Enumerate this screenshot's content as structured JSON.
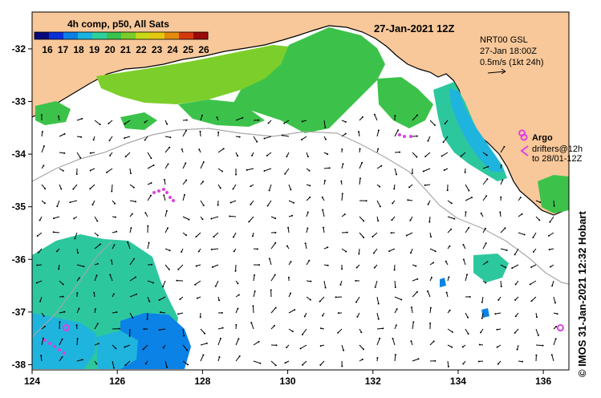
{
  "colorbar": {
    "title": "4h comp, p50, All Sats",
    "ticks": [
      "16",
      "17",
      "18",
      "19",
      "20",
      "21",
      "22",
      "23",
      "24",
      "25",
      "26"
    ],
    "colors": [
      "#08087a",
      "#0a2fd6",
      "#0b7fe6",
      "#19b3e0",
      "#2dcf9a",
      "#39c24c",
      "#7acc2a",
      "#c9d719",
      "#e3c80f",
      "#e48a0d",
      "#d4380b",
      "#9a0a0a"
    ]
  },
  "title_date": "27-Jan-2021 12Z",
  "current_info": {
    "line1": "NRT00 GSL",
    "line2": "27-Jan 18:00Z",
    "line3": "0.5m/s (1kt 24h)"
  },
  "legend": {
    "argo_label": "Argo",
    "drifters_label": "drifters@12h",
    "drifters_to": "to 28/01-12Z"
  },
  "credit": "© IMOS 31-Jan-2021 12:32 Hobart",
  "axes": {
    "x_range": [
      124,
      136.6
    ],
    "y_range": [
      -38.1,
      -31.3
    ],
    "x_ticks": [
      "124",
      "126",
      "128",
      "130",
      "132",
      "134",
      "136"
    ],
    "y_ticks": [
      "-32",
      "-33",
      "-34",
      "-35",
      "-36",
      "-37",
      "-38"
    ]
  },
  "colors": {
    "land": "#f8c89a",
    "coast": "#000000",
    "isobath": "#a8a8a8",
    "argo": "#e040e0",
    "sst_green": "#3cc24a",
    "sst_lightgreen": "#7ccf2a",
    "sst_teal": "#2dc79e",
    "sst_cyan": "#1fb4de",
    "sst_blue": "#0b82e6"
  },
  "argo_floats": [
    {
      "lon": 124.8,
      "lat": -37.3
    },
    {
      "lon": 136.4,
      "lat": -37.3
    },
    {
      "lon": 135.5,
      "lat": -33.6
    }
  ]
}
